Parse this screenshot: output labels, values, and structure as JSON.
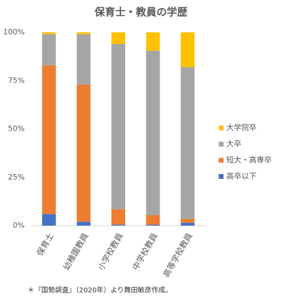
{
  "chart_data": {
    "type": "stacked_bar_100",
    "title": "保育士・教員の学歴",
    "categories": [
      "保育士",
      "幼稚園教員",
      "小学校教員",
      "中学校教員",
      "高等学校教員"
    ],
    "series": [
      {
        "name": "高卒以下",
        "color": "#4472c4",
        "values": [
          6,
          2,
          0.5,
          0.5,
          1.5
        ]
      },
      {
        "name": "短大・高専卒",
        "color": "#ed7d31",
        "values": [
          77,
          71,
          8,
          5,
          2
        ]
      },
      {
        "name": "大卒",
        "color": "#a5a5a5",
        "values": [
          16,
          26,
          85.5,
          85,
          78.5
        ]
      },
      {
        "name": "大学院卒",
        "color": "#ffc000",
        "values": [
          1,
          1,
          6,
          9.5,
          18
        ]
      }
    ],
    "ylim": [
      0,
      100
    ],
    "yticks": [
      {
        "value": 0,
        "label": "0%"
      },
      {
        "value": 25,
        "label": "25%"
      },
      {
        "value": 50,
        "label": "50%"
      },
      {
        "value": 75,
        "label": "75%"
      },
      {
        "value": 100,
        "label": "100%"
      }
    ],
    "legend": "right",
    "note": "＊『国勢調査』（2020年）より舞田敏彦作成。"
  }
}
